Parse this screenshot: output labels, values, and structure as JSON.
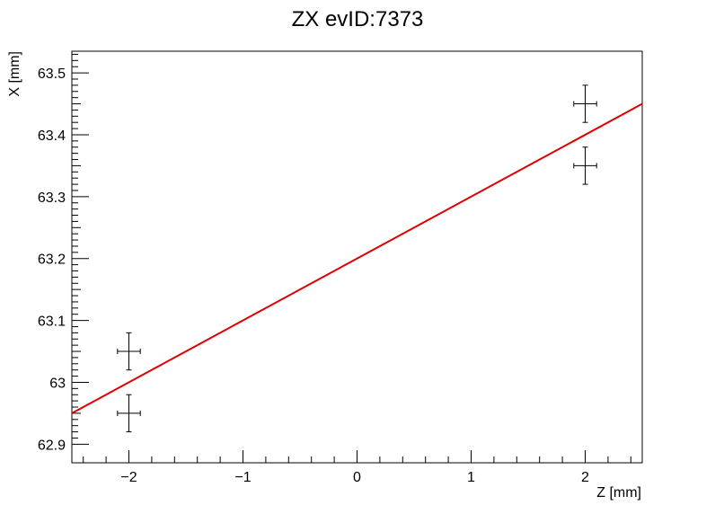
{
  "chart_data": {
    "type": "scatter",
    "title": "ZX evID:7373",
    "xlabel": "Z [mm]",
    "ylabel": "X [mm]",
    "xlim": [
      -2.5,
      2.5
    ],
    "ylim": [
      62.87,
      63.535
    ],
    "xticks": [
      -2,
      -1,
      0,
      1,
      2
    ],
    "xtick_labels": [
      "−2",
      "−1",
      "0",
      "1",
      "2"
    ],
    "yticks": [
      62.9,
      63.0,
      63.1,
      63.2,
      63.3,
      63.4,
      63.5
    ],
    "ytick_labels": [
      "62.9",
      "63",
      "63.1",
      "63.2",
      "63.3",
      "63.4",
      "63.5"
    ],
    "grid": false,
    "points": [
      {
        "x": -2,
        "y": 63.05,
        "xerr": 0.1,
        "yerr": 0.03
      },
      {
        "x": -2,
        "y": 62.95,
        "xerr": 0.1,
        "yerr": 0.03
      },
      {
        "x": 2,
        "y": 63.45,
        "xerr": 0.1,
        "yerr": 0.03
      },
      {
        "x": 2,
        "y": 63.35,
        "xerr": 0.1,
        "yerr": 0.03
      }
    ],
    "fit_line": {
      "x": [
        -2.5,
        2.5
      ],
      "y": [
        62.95,
        63.45
      ],
      "color": "#dd0000"
    },
    "marker_color": "#000000"
  }
}
